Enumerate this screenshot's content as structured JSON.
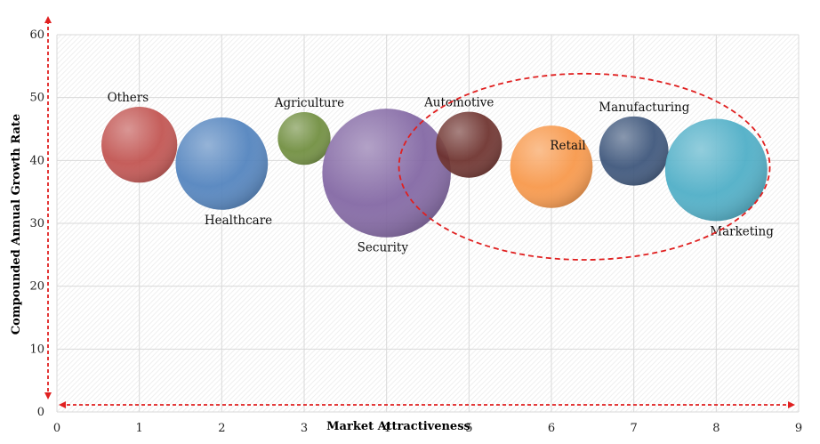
{
  "chart_data": {
    "type": "scatter",
    "xlabel": "Market Attractiveness",
    "ylabel": "Compounded Annual Growth Rate",
    "xlim": [
      0,
      9
    ],
    "ylim": [
      0,
      60
    ],
    "x_ticks": [
      "0",
      "1",
      "2",
      "3",
      "4",
      "5",
      "6",
      "7",
      "8",
      "9"
    ],
    "y_ticks": [
      "0",
      "10",
      "20",
      "30",
      "40",
      "50",
      "60"
    ],
    "grid": true,
    "background": "hatched",
    "bubbles": [
      {
        "label": "Others",
        "x": 1,
        "y": 42.5,
        "size": 4.6,
        "color": "#c0504d"
      },
      {
        "label": "Healthcare",
        "x": 2,
        "y": 39.5,
        "size": 5.6,
        "color": "#4f81bd"
      },
      {
        "label": "Agriculture",
        "x": 3,
        "y": 43.5,
        "size": 3.2,
        "color": "#6e8c3c"
      },
      {
        "label": "Security",
        "x": 4,
        "y": 38,
        "size": 7.8,
        "color": "#8064a2"
      },
      {
        "label": "Automotive",
        "x": 5,
        "y": 42.5,
        "size": 4.0,
        "color": "#6b2f2a"
      },
      {
        "label": "Retail",
        "x": 6,
        "y": 39,
        "size": 5.0,
        "color": "#f79646"
      },
      {
        "label": "Manufacturing",
        "x": 7,
        "y": 41.5,
        "size": 4.2,
        "color": "#3a5378"
      },
      {
        "label": "Marketing",
        "x": 8,
        "y": 38.5,
        "size": 6.2,
        "color": "#4bacc6"
      }
    ],
    "highlight_region": {
      "cx": 6.4,
      "cy": 39,
      "rx": 2.25,
      "ry": 14.8,
      "style": "dashed",
      "color": "#e02020"
    },
    "axis_arrows_color": "#e02020"
  }
}
